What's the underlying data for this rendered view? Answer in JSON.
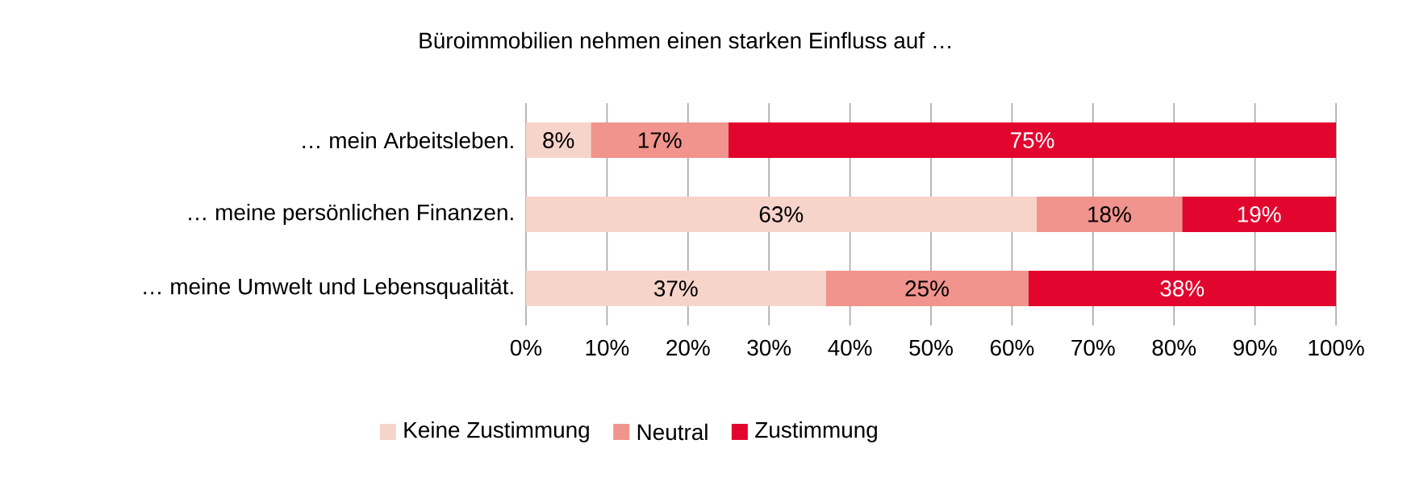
{
  "chart_data": {
    "type": "bar",
    "orientation": "horizontal",
    "stacked": true,
    "title": "Büroimmobilien nehmen einen starken Einfluss auf …",
    "categories": [
      "… mein Arbeitsleben.",
      "… meine persönlichen Finanzen.",
      "… meine Umwelt und Lebensqualität."
    ],
    "series": [
      {
        "name": "Keine Zustimmung",
        "color": "#f7d4ca",
        "values": [
          8,
          63,
          37
        ],
        "value_labels": [
          "8%",
          "63%",
          "37%"
        ]
      },
      {
        "name": "Neutral",
        "color": "#f0948d",
        "values": [
          17,
          18,
          25
        ],
        "value_labels": [
          "17%",
          "18%",
          "25%"
        ]
      },
      {
        "name": "Zustimmung",
        "color": "#e2062e",
        "values": [
          75,
          19,
          38
        ],
        "value_labels": [
          "75%",
          "19%",
          "38%"
        ]
      }
    ],
    "xlim": [
      0,
      100
    ],
    "xticks": [
      {
        "value": 0,
        "label": "0%"
      },
      {
        "value": 10,
        "label": "10%"
      },
      {
        "value": 20,
        "label": "20%"
      },
      {
        "value": 30,
        "label": "30%"
      },
      {
        "value": 40,
        "label": "40%"
      },
      {
        "value": 50,
        "label": "50%"
      },
      {
        "value": 60,
        "label": "60%"
      },
      {
        "value": 70,
        "label": "70%"
      },
      {
        "value": 80,
        "label": "80%"
      },
      {
        "value": 90,
        "label": "90%"
      },
      {
        "value": 100,
        "label": "100%"
      }
    ],
    "grid": "x",
    "legend": "bottom"
  }
}
